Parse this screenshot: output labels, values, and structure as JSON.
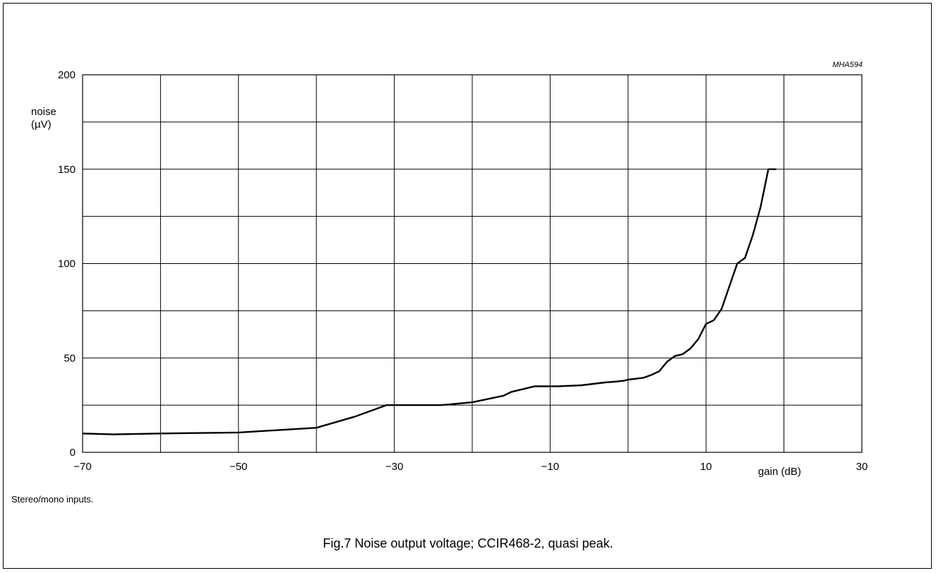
{
  "figure_code": "MHA594",
  "note": "Stereo/mono inputs.",
  "caption": "Fig.7  Noise output voltage; CCIR468-2, quasi peak.",
  "chart_data": {
    "type": "line",
    "title": "",
    "xlabel": "gain (dB)",
    "ylabel_line1": "noise",
    "ylabel_line2": "(µV)",
    "xlim": [
      -70,
      30
    ],
    "ylim": [
      0,
      200
    ],
    "x_grid_step": 10,
    "y_grid_step": 25,
    "grid": true,
    "x_ticks": [
      -70,
      -50,
      -30,
      -10,
      10,
      30
    ],
    "x_tick_labels": [
      "−70",
      "−50",
      "−30",
      "−10",
      "10",
      "30"
    ],
    "y_ticks": [
      0,
      50,
      100,
      150,
      200
    ],
    "y_tick_labels": [
      "0",
      "50",
      "100",
      "150",
      "200"
    ],
    "series": [
      {
        "color": "#000000",
        "x": [
          -70,
          -66,
          -60,
          -50,
          -40,
          -35,
          -31,
          -30,
          -24,
          -20,
          -16,
          -15,
          -12,
          -9,
          -6,
          -3,
          -1.5,
          -0.5,
          0,
          1,
          2,
          3,
          4,
          5,
          6,
          7,
          8,
          9,
          10,
          11,
          12,
          13,
          14,
          15,
          16,
          17,
          18,
          19
        ],
        "values": [
          10,
          9.5,
          10,
          10.5,
          13,
          19,
          25,
          25,
          25,
          26.5,
          30,
          32,
          35,
          35,
          35.5,
          37,
          37.5,
          38,
          38.5,
          39,
          39.5,
          41,
          43,
          48,
          51,
          52,
          55,
          60,
          68,
          70,
          76,
          88,
          100,
          103,
          115,
          130,
          150,
          150
        ]
      }
    ]
  }
}
